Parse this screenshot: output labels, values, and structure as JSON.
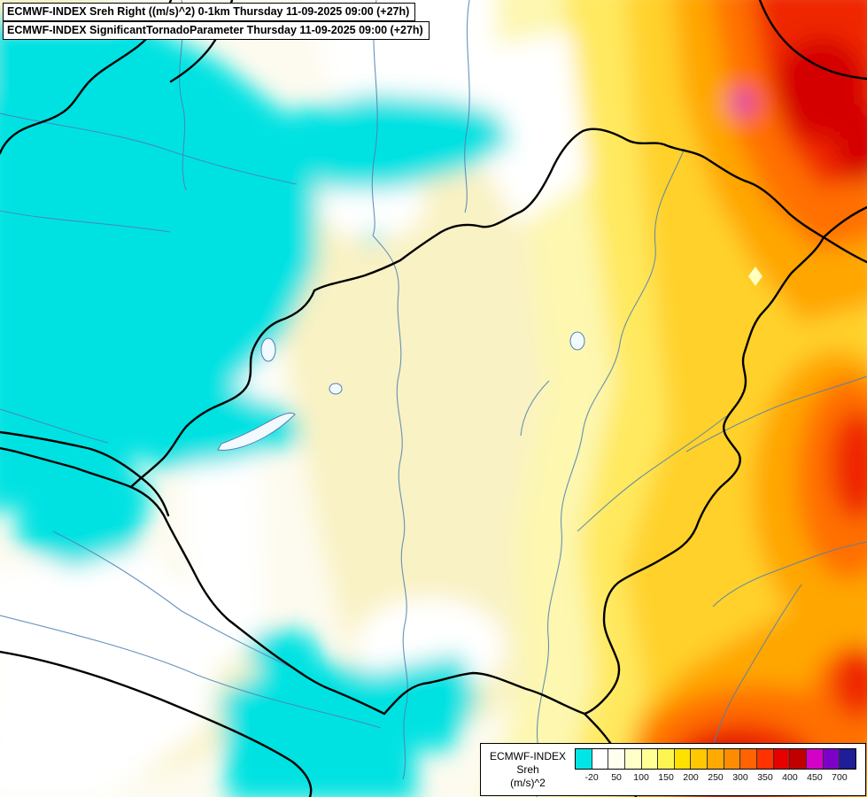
{
  "titles": {
    "line1": "ECMWF-INDEX Sreh Right ((m/s)^2) 0-1km Thursday 11-09-2025 09:00 (+27h)",
    "line2": "ECMWF-INDEX SignificantTornadoParameter Thursday 11-09-2025 09:00 (+27h)"
  },
  "legend": {
    "title": "ECMWF-INDEX",
    "subtitle": "Sreh",
    "units": "(m/s)^2",
    "ticks": [
      "-20",
      "50",
      "100",
      "150",
      "200",
      "250",
      "300",
      "350",
      "400",
      "450",
      "700"
    ],
    "colors": [
      "#00e6e6",
      "#ffffff",
      "#fffff0",
      "#ffffc8",
      "#ffff96",
      "#fff550",
      "#ffe100",
      "#ffc800",
      "#ffaa00",
      "#ff8c00",
      "#ff6400",
      "#ff3200",
      "#e60000",
      "#c00000",
      "#d400c8",
      "#7d00c8",
      "#1e1e96"
    ]
  },
  "map_colors": {
    "negative_sreh": "#00e2e2",
    "low": "#ffffff",
    "moderate": "#f9f2c4",
    "high": "#ffd12a",
    "very_high": "#ff6f00",
    "extreme": "#ef2800",
    "max_spot": "#d400c8"
  }
}
